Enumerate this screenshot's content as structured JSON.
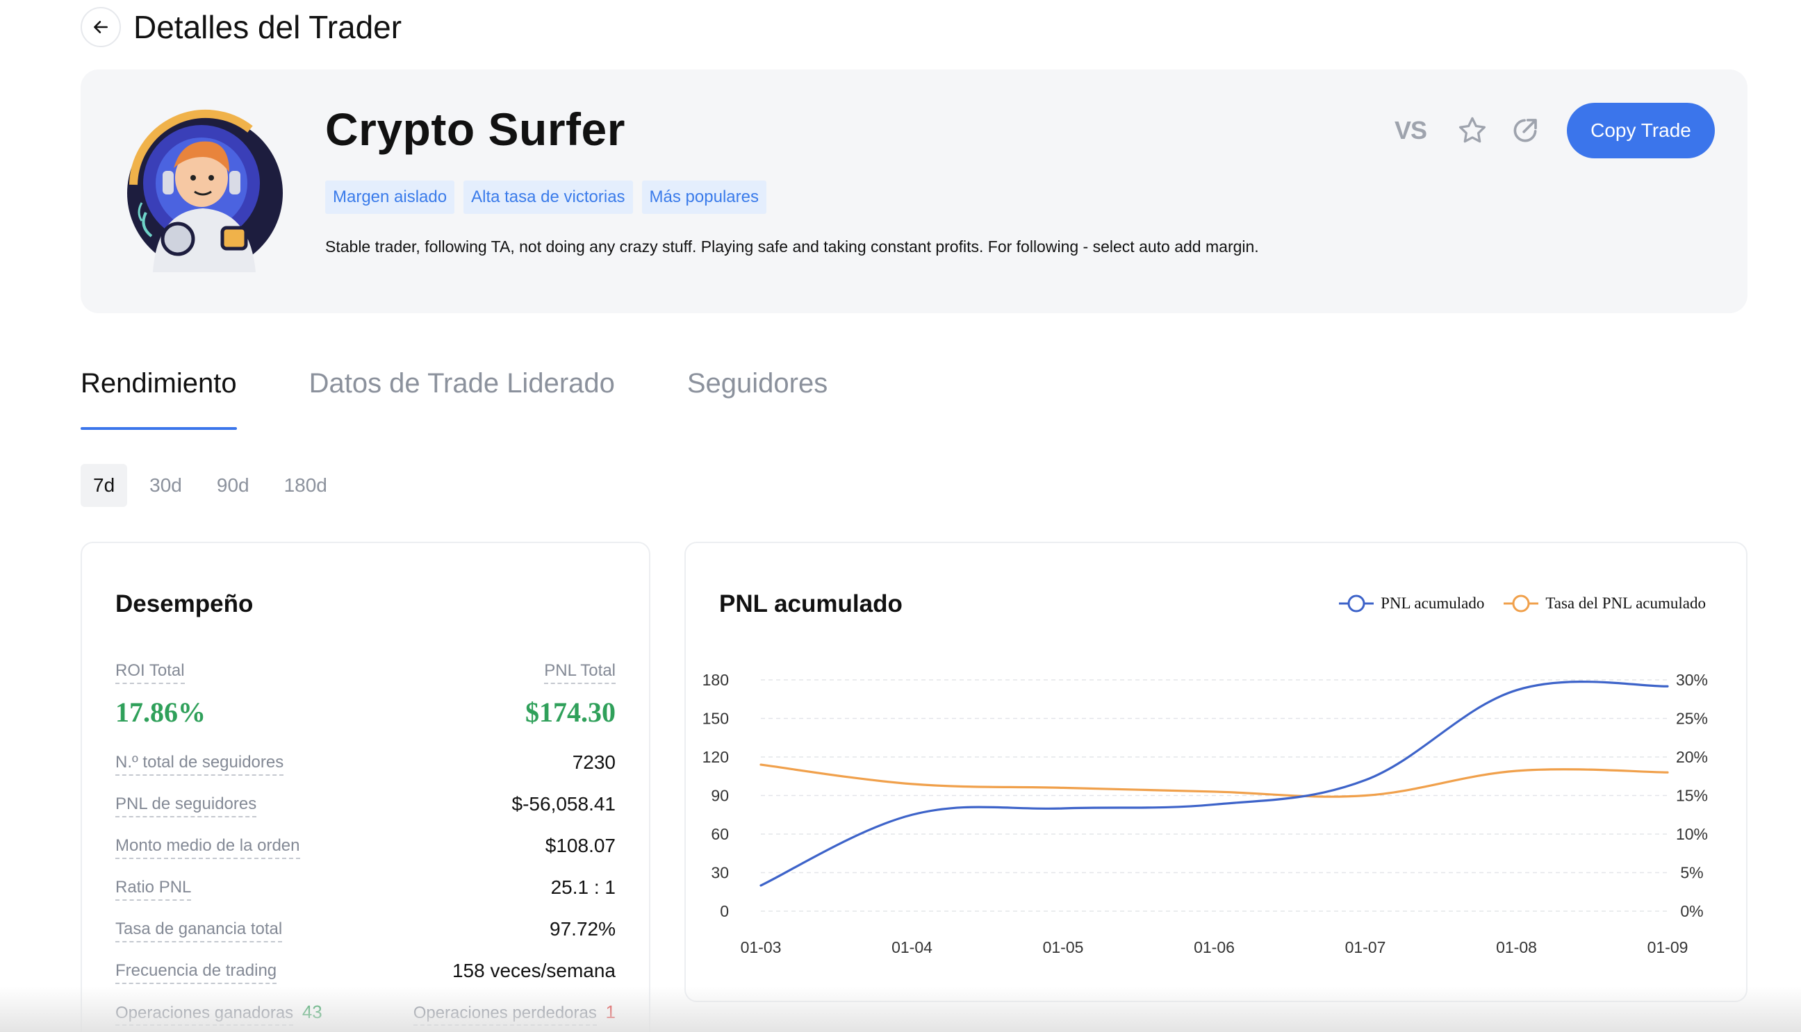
{
  "header": {
    "title": "Detalles del Trader"
  },
  "trader": {
    "name": "Crypto Surfer",
    "tags": [
      "Margen aislado",
      "Alta tasa de victorias",
      "Más populares"
    ],
    "bio": "Stable trader, following TA, not doing any crazy stuff. Playing safe and taking constant profits. For following - select auto add margin.",
    "vs_label": "VS",
    "copy_label": "Copy Trade"
  },
  "tabs": [
    "Rendimiento",
    "Datos de Trade Liderado",
    "Seguidores"
  ],
  "periods": [
    "7d",
    "30d",
    "90d",
    "180d"
  ],
  "performance": {
    "title": "Desempeño",
    "roi_label": "ROI Total",
    "roi_value": "17.86%",
    "pnl_label": "PNL Total",
    "pnl_value": "$174.30",
    "rows": [
      {
        "label": "N.º total de seguidores",
        "value": "7230"
      },
      {
        "label": "PNL de seguidores",
        "value": "$-56,058.41"
      },
      {
        "label": "Monto medio de la orden",
        "value": "$108.07"
      },
      {
        "label": "Ratio PNL",
        "value": "25.1 : 1"
      },
      {
        "label": "Tasa de ganancia total",
        "value": "97.72%"
      },
      {
        "label": "Frecuencia de trading",
        "value": "158 veces/semana"
      }
    ],
    "wins_label": "Operaciones ganadoras",
    "wins_value": "43",
    "losses_label": "Operaciones perdedoras",
    "losses_value": "1"
  },
  "colors": {
    "accent": "#3b75eb",
    "positive": "#2fa05a",
    "negative": "#e03a3a",
    "series_pnl": "#3d63c9",
    "series_rate": "#f0a04b"
  },
  "chart_data": {
    "type": "line",
    "title": "PNL acumulado",
    "x": [
      "01-03",
      "01-04",
      "01-05",
      "01-06",
      "01-07",
      "01-08",
      "01-09"
    ],
    "y_left_ticks": [
      "180",
      "150",
      "120",
      "90",
      "60",
      "30",
      "0"
    ],
    "y_right_ticks": [
      "30%",
      "25%",
      "20%",
      "15%",
      "10%",
      "5%",
      "0%"
    ],
    "ylim_left": [
      0,
      180
    ],
    "ylim_right": [
      0,
      30
    ],
    "series": [
      {
        "name": "PNL acumulado",
        "axis": "left",
        "values": [
          20,
          75,
          80,
          83,
          102,
          172,
          175
        ]
      },
      {
        "name": "Tasa del PNL acumulado",
        "axis": "right",
        "unit": "%",
        "values": [
          19,
          16.5,
          16,
          15.5,
          15,
          18.2,
          18
        ]
      }
    ],
    "legend": "top-right",
    "grid": true
  }
}
